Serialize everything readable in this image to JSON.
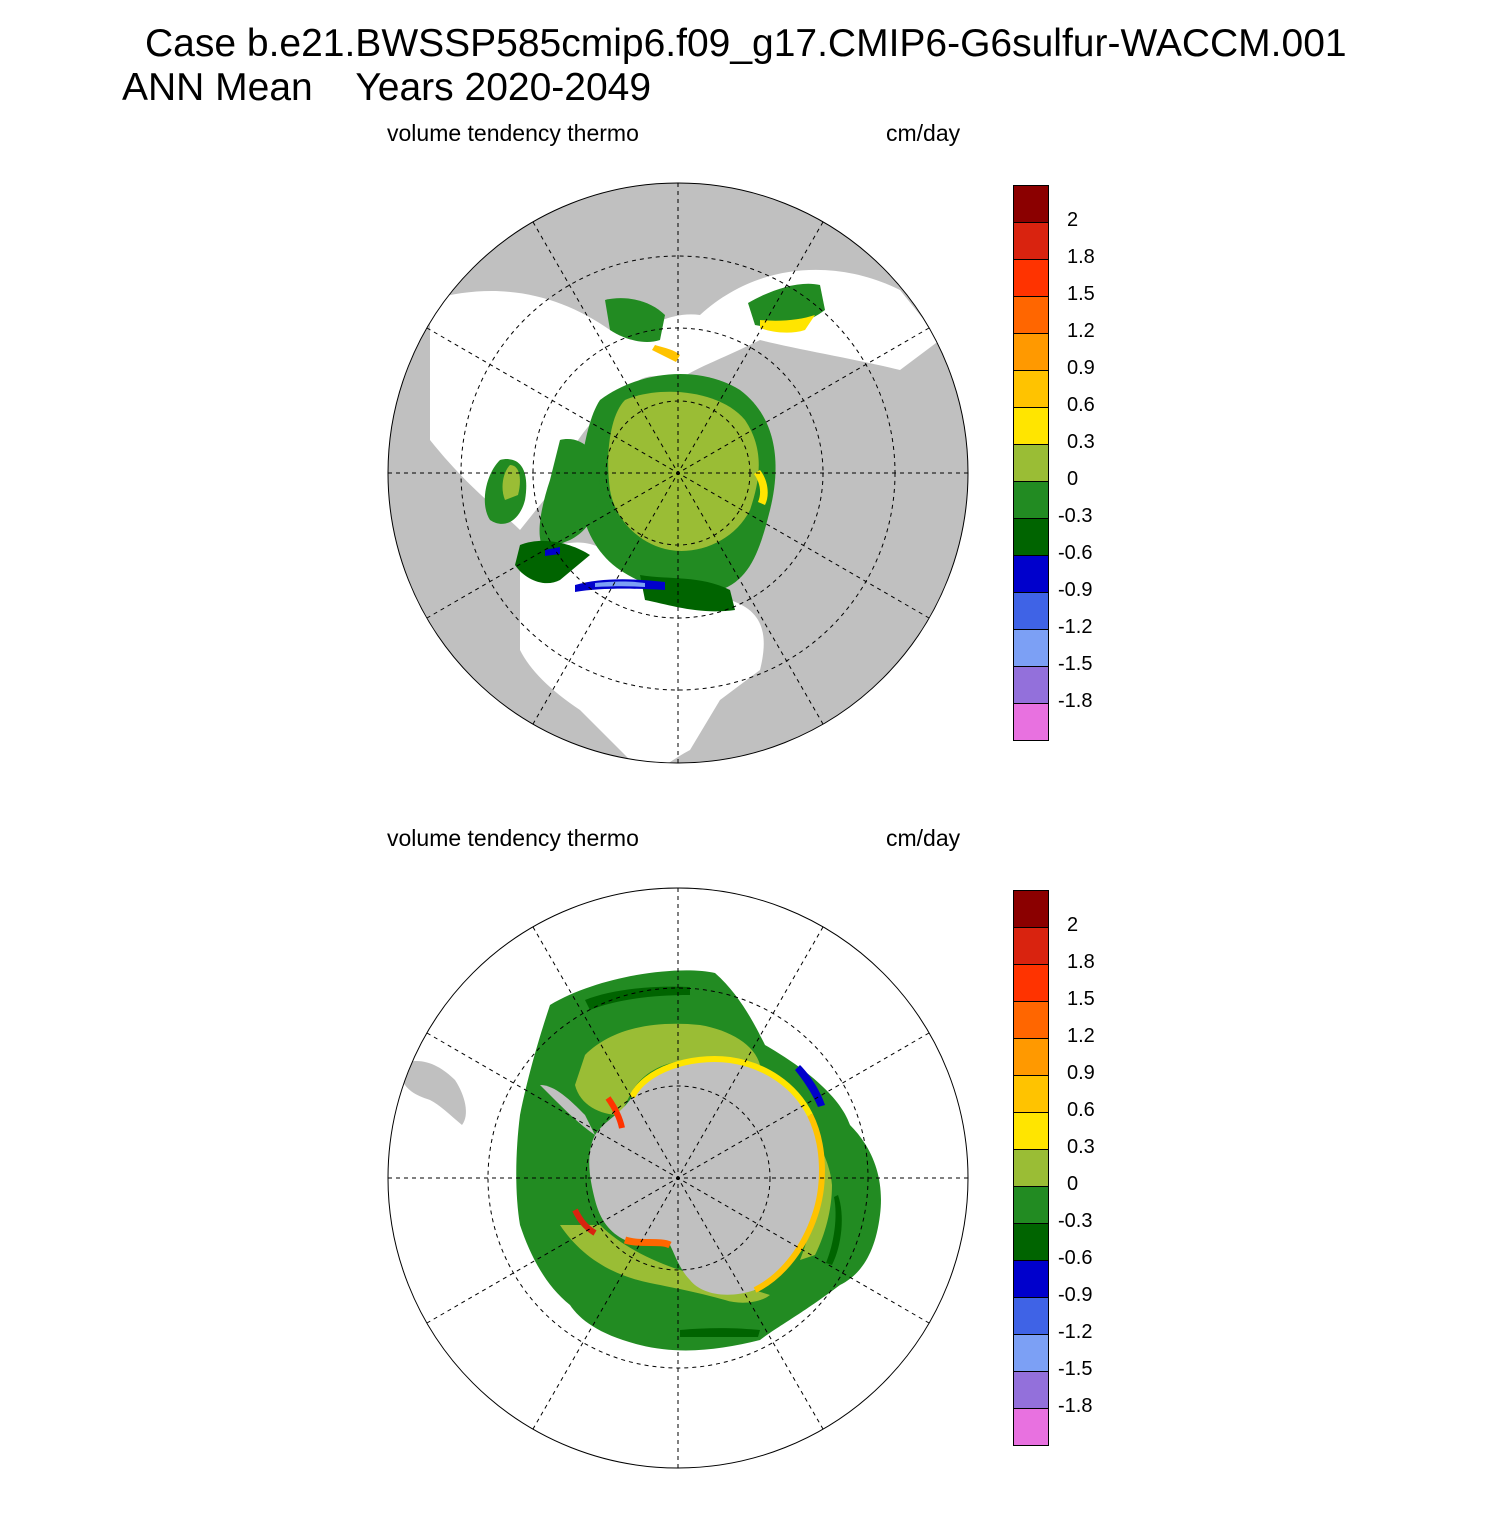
{
  "title": {
    "line1": "Case b.e21.BWSSP585cmip6.f09_g17.CMIP6-G6sulfur-WACCM.001",
    "line2": "ANN Mean    Years 2020-2049"
  },
  "panels": [
    {
      "variable": "volume tendency thermo",
      "units": "cm/day",
      "hemisphere": "north"
    },
    {
      "variable": "volume tendency thermo",
      "units": "cm/day",
      "hemisphere": "south"
    }
  ],
  "colorbar": {
    "colors": [
      "#8b0000",
      "#d9230f",
      "#ff3300",
      "#ff6600",
      "#ff9900",
      "#ffc300",
      "#ffe500",
      "#9abd35",
      "#228b22",
      "#006400",
      "#0000cc",
      "#3f63e6",
      "#7ca0f5",
      "#9370db",
      "#e871e0"
    ],
    "tick_labels": [
      "2",
      "1.8",
      "1.5",
      "1.2",
      "0.9",
      "0.6",
      "0.3",
      "0",
      "-0.3",
      "-0.6",
      "-0.9",
      "-1.2",
      "-1.5",
      "-1.8"
    ]
  },
  "colors": {
    "land": "#c0c0c0",
    "no_data": "#ffffff"
  }
}
